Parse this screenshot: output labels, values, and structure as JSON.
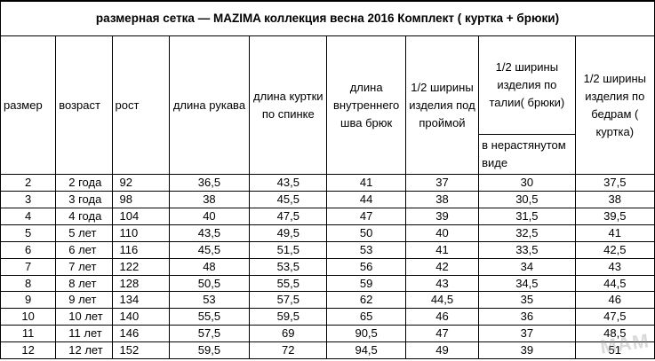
{
  "title": "размерная сетка — MAZIMA  коллекция весна 2016 Комплект ( куртка + брюки)",
  "headers": {
    "size": "размер",
    "age": "возраст",
    "height": "рост",
    "sleeve": "длина рукава",
    "jacket_back": "длина куртки по спинке",
    "inseam": "длина внутреннего шва брюк",
    "half_chest": "1/2 ширины изделия под проймой",
    "half_waist": "1/2 ширины изделия по талии( брюки)",
    "half_waist_note": "в нерастянутом виде",
    "half_hips": "1/2 ширины изделия по бедрам ( куртка)"
  },
  "rows": [
    [
      "2",
      "2 года",
      "92",
      "36,5",
      "43,5",
      "41",
      "37",
      "30",
      "37,5"
    ],
    [
      "3",
      "3 года",
      "98",
      "38",
      "45,5",
      "44",
      "38",
      "30,5",
      "38"
    ],
    [
      "4",
      "4 года",
      "104",
      "40",
      "47,5",
      "47",
      "39",
      "31,5",
      "39,5"
    ],
    [
      "5",
      "5 лет",
      "110",
      "43,5",
      "49,5",
      "50",
      "40",
      "32,5",
      "41"
    ],
    [
      "6",
      "6 лет",
      "116",
      "45,5",
      "51,5",
      "53",
      "41",
      "33,5",
      "42,5"
    ],
    [
      "7",
      "7 лет",
      "122",
      "48",
      "53,5",
      "56",
      "42",
      "34",
      "43"
    ],
    [
      "8",
      "8 лет",
      "128",
      "50,5",
      "55,5",
      "59",
      "43",
      "34,5",
      "44,5"
    ],
    [
      "9",
      "9 лет",
      "134",
      "53",
      "57,5",
      "62",
      "44,5",
      "35",
      "46"
    ],
    [
      "10",
      "10 лет",
      "140",
      "55,5",
      "59,5",
      "65",
      "46",
      "36",
      "47,5"
    ],
    [
      "11",
      "11 лет",
      "146",
      "57,5",
      "69",
      "90,5",
      "47",
      "37",
      "48,5"
    ],
    [
      "12",
      "12 лет",
      "152",
      "59,5",
      "72",
      "94,5",
      "49",
      "39",
      "51"
    ]
  ],
  "watermark": "МАМ"
}
